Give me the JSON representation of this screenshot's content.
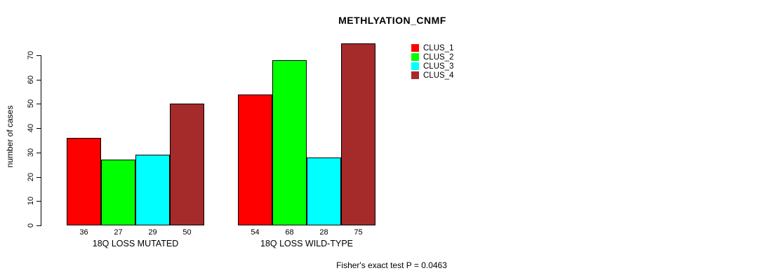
{
  "title": "METHLYATION_CNMF",
  "footer": "Fisher's exact test P = 0.0463",
  "chart_data": {
    "type": "bar",
    "title": "METHLYATION_CNMF",
    "xlabel": "",
    "ylabel": "number of cases",
    "categories": [
      "18Q LOSS MUTATED",
      "18Q LOSS WILD-TYPE"
    ],
    "series": [
      {
        "name": "CLUS_1",
        "color": "#FF0000",
        "values": [
          36,
          54
        ]
      },
      {
        "name": "CLUS_2",
        "color": "#00FF00",
        "values": [
          27,
          68
        ]
      },
      {
        "name": "CLUS_3",
        "color": "#00FFFF",
        "values": [
          29,
          28
        ]
      },
      {
        "name": "CLUS_4",
        "color": "#A52A2A",
        "values": [
          50,
          75
        ]
      }
    ],
    "yticks": [
      0,
      10,
      20,
      30,
      40,
      50,
      60,
      70
    ],
    "ylim": [
      0,
      75
    ],
    "grid": false,
    "legend_position": "top-right",
    "bar_value_labels": true,
    "annotation": "Fisher's exact test P = 0.0463"
  }
}
